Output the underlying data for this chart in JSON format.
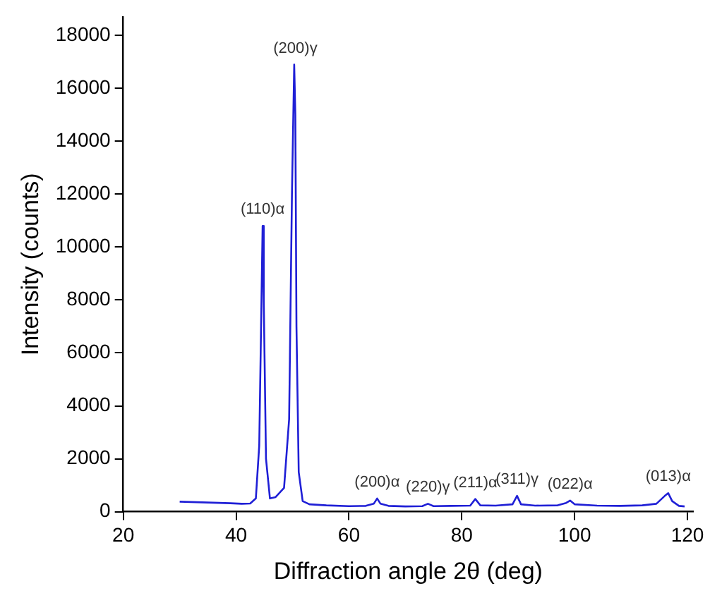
{
  "chart_data": {
    "type": "line",
    "xlabel": "Diffraction angle 2θ (deg)",
    "ylabel": "Intensity (counts)",
    "xlim": [
      20,
      121
    ],
    "ylim": [
      0,
      18700
    ],
    "xticks": [
      20,
      40,
      60,
      80,
      100,
      120
    ],
    "yticks": [
      0,
      2000,
      4000,
      6000,
      8000,
      10000,
      12000,
      14000,
      16000,
      18000
    ],
    "grid": false,
    "legend": false,
    "marker": "none",
    "series": [
      {
        "color": "#1f1fd6",
        "x": [
          30,
          33,
          36,
          39,
          41,
          42.5,
          43.5,
          44.1,
          44.5,
          44.7,
          44.9,
          45.3,
          46,
          47,
          48.5,
          49.4,
          49.9,
          50.3,
          50.5,
          50.7,
          51.1,
          51.8,
          53,
          56,
          60,
          63,
          64.4,
          65,
          65.6,
          67,
          70,
          73,
          74,
          75,
          78,
          81.5,
          82.4,
          83.3,
          86,
          89,
          89.8,
          90.5,
          93,
          97,
          98.5,
          99.2,
          100,
          104,
          108,
          112,
          114.5,
          116,
          116.6,
          117.3,
          118.5,
          119.5
        ],
        "values": [
          380,
          360,
          340,
          320,
          300,
          310,
          500,
          2500,
          8000,
          10800,
          8000,
          2000,
          500,
          550,
          900,
          3500,
          12000,
          16900,
          15000,
          7000,
          1500,
          400,
          280,
          240,
          210,
          220,
          300,
          500,
          300,
          220,
          200,
          210,
          300,
          210,
          220,
          230,
          480,
          240,
          230,
          280,
          600,
          280,
          230,
          240,
          330,
          420,
          280,
          230,
          220,
          240,
          300,
          600,
          700,
          400,
          220,
          200
        ]
      }
    ],
    "annotations": [
      {
        "text": "(110)α",
        "x": 44.7,
        "y": 10800
      },
      {
        "text": "(200)γ",
        "x": 50.5,
        "y": 16900
      },
      {
        "text": "(200)α",
        "x": 65,
        "y": 500
      },
      {
        "text": "(220)γ",
        "x": 74,
        "y": 300
      },
      {
        "text": "(211)α",
        "x": 82.4,
        "y": 480
      },
      {
        "text": "(311)γ",
        "x": 89.8,
        "y": 600
      },
      {
        "text": "(022)α",
        "x": 99.2,
        "y": 420
      },
      {
        "text": "(013)α",
        "x": 116.6,
        "y": 700
      }
    ]
  }
}
